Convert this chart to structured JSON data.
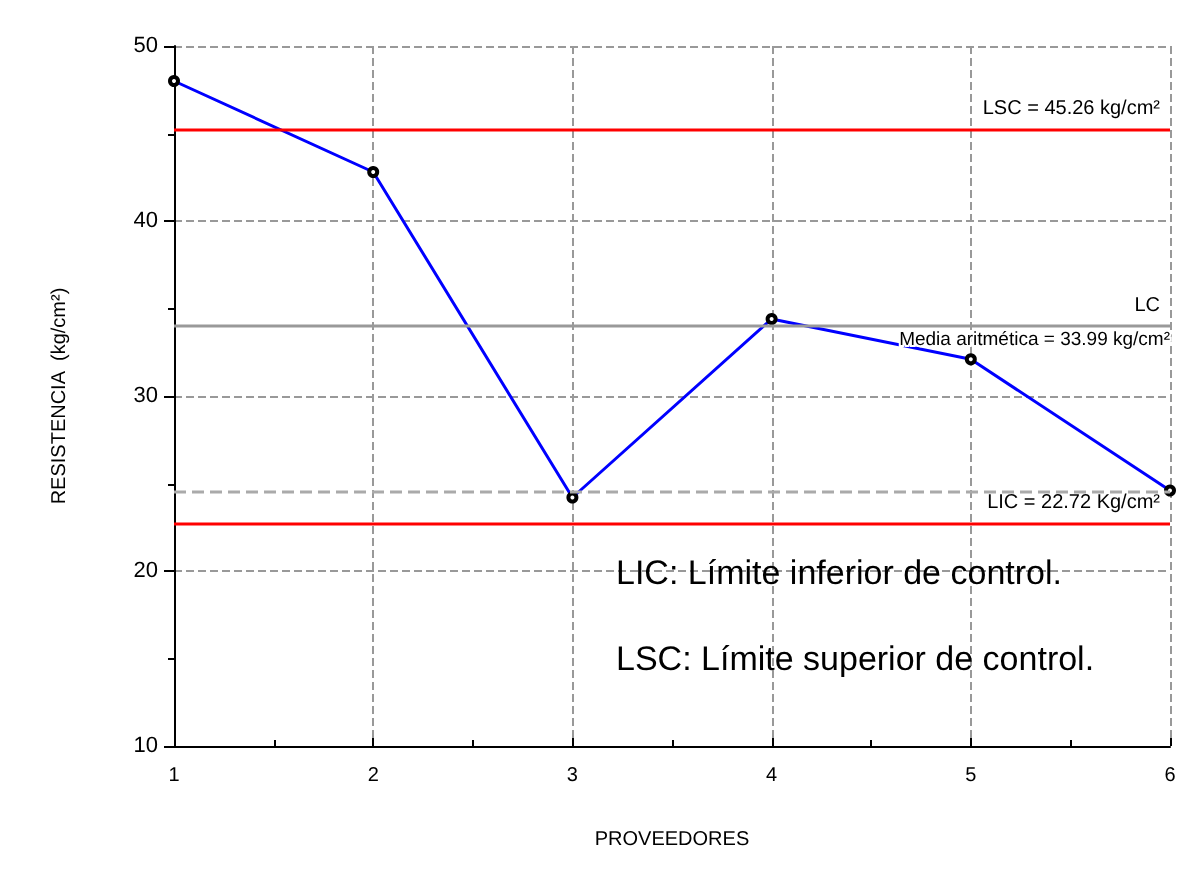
{
  "chart_data": {
    "type": "line",
    "xlabel": "PROVEEDORES",
    "ylabel": "RESISTENCIA  (kg/cm²)",
    "x": [
      1,
      2,
      3,
      4,
      5,
      6
    ],
    "series": [
      {
        "color": "#0000ff",
        "values": [
          48.0,
          42.8,
          24.2,
          34.4,
          32.1,
          24.6
        ]
      }
    ],
    "xlim": [
      1,
      6
    ],
    "xticks": [
      1,
      2,
      3,
      4,
      5,
      6
    ],
    "ylim": [
      10,
      50
    ],
    "yticks": [
      10,
      20,
      30,
      40,
      50
    ],
    "grid": true,
    "marker": "circle",
    "line_style": "solid",
    "ref_lines": [
      {
        "axis": "y",
        "value": 45.26,
        "label": "LSC = 45.26 kg/cm²",
        "color": "#ff0000",
        "line_style": "solid"
      },
      {
        "axis": "y",
        "value": 33.99,
        "label": "LC",
        "color": "#999999",
        "line_style": "solid"
      },
      {
        "axis": "y",
        "value": 22.72,
        "label": "LIC = 22.72 Kg/cm²",
        "color": "#ff0000",
        "line_style": "solid"
      },
      {
        "axis": "y",
        "value": 24.6,
        "color": "#aaaaaa",
        "line_style": "dashed"
      }
    ],
    "annotations": [
      {
        "text": "Media aritmética = 33.99 kg/cm²",
        "x": 6,
        "y": 33.99
      },
      "LIC: Límite inferior de control.",
      "LSC: Límite superior de control."
    ]
  }
}
